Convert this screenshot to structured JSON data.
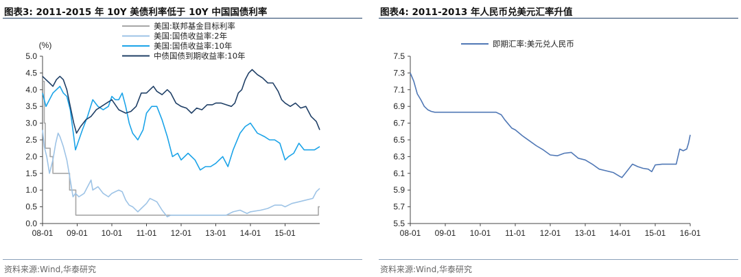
{
  "left": {
    "title": "图表3:  2011-2015 年 10Y 美债利率低于 10Y 中国国债利率",
    "source": "资料来源:Wind,华泰研究"
  },
  "right": {
    "title": "图表4:  2011-2013 年人民币兑美元汇率升值",
    "source": "资料来源:Wind,华泰研究"
  },
  "chart_data": [
    {
      "type": "line",
      "title": "2011-2015 年 10Y 美债利率低于 10Y 中国国债利率",
      "ylabel": "(%)",
      "ylim": [
        0.0,
        5.0
      ],
      "yticks": [
        "5.0",
        "4.5",
        "4.0",
        "3.5",
        "3.0",
        "2.5",
        "2.0",
        "1.5",
        "1.0",
        "0.5",
        "0.0"
      ],
      "xticks": [
        "08-01",
        "09-01",
        "10-01",
        "11-01",
        "12-01",
        "13-01",
        "14-01",
        "15-01"
      ],
      "xlim": [
        2008.0,
        2016.0
      ],
      "legend_position": "top",
      "series": [
        {
          "name": "美国:联邦基金目标利率",
          "color": "#a6a6a6",
          "step": true,
          "x": [
            2008.0,
            2008.05,
            2008.05,
            2008.08,
            2008.08,
            2008.22,
            2008.22,
            2008.3,
            2008.3,
            2008.78,
            2008.78,
            2008.96,
            2008.96,
            2015.96,
            2015.96,
            2016.0
          ],
          "y": [
            4.25,
            4.25,
            3.0,
            3.0,
            2.25,
            2.25,
            2.0,
            2.0,
            1.5,
            1.5,
            1.0,
            1.0,
            0.25,
            0.25,
            0.5,
            0.5
          ]
        },
        {
          "name": "美国:国债收益率:2年",
          "color": "#9dc3e6",
          "x": [
            2008.0,
            2008.05,
            2008.12,
            2008.2,
            2008.3,
            2008.38,
            2008.45,
            2008.5,
            2008.6,
            2008.7,
            2008.8,
            2008.88,
            2008.95,
            2009.05,
            2009.2,
            2009.4,
            2009.45,
            2009.6,
            2009.75,
            2009.9,
            2010.0,
            2010.1,
            2010.2,
            2010.3,
            2010.4,
            2010.5,
            2010.6,
            2010.75,
            2010.85,
            2011.0,
            2011.1,
            2011.2,
            2011.3,
            2011.45,
            2011.6,
            2011.7,
            2011.8,
            2012.0,
            2012.3,
            2012.6,
            2012.8,
            2013.0,
            2013.3,
            2013.5,
            2013.7,
            2013.9,
            2014.0,
            2014.3,
            2014.5,
            2014.7,
            2014.9,
            2015.0,
            2015.2,
            2015.4,
            2015.6,
            2015.8,
            2015.9,
            2016.0
          ],
          "y": [
            2.8,
            2.3,
            2.0,
            1.5,
            1.9,
            2.4,
            2.7,
            2.6,
            2.3,
            1.9,
            1.3,
            0.8,
            0.9,
            0.8,
            0.9,
            1.3,
            1.0,
            1.1,
            0.9,
            0.8,
            0.9,
            0.95,
            1.0,
            0.95,
            0.7,
            0.55,
            0.5,
            0.35,
            0.45,
            0.6,
            0.75,
            0.7,
            0.65,
            0.4,
            0.2,
            0.25,
            0.25,
            0.25,
            0.25,
            0.25,
            0.25,
            0.25,
            0.25,
            0.35,
            0.4,
            0.3,
            0.35,
            0.4,
            0.45,
            0.55,
            0.55,
            0.5,
            0.6,
            0.65,
            0.7,
            0.75,
            0.95,
            1.05
          ]
        },
        {
          "name": "美国:国债收益率:10年",
          "color": "#1aa3e8",
          "x": [
            2008.0,
            2008.1,
            2008.2,
            2008.3,
            2008.4,
            2008.5,
            2008.6,
            2008.7,
            2008.8,
            2008.9,
            2008.95,
            2009.05,
            2009.15,
            2009.3,
            2009.45,
            2009.6,
            2009.75,
            2009.9,
            2010.0,
            2010.1,
            2010.2,
            2010.3,
            2010.4,
            2010.5,
            2010.6,
            2010.75,
            2010.9,
            2011.0,
            2011.15,
            2011.3,
            2011.45,
            2011.6,
            2011.75,
            2011.9,
            2012.0,
            2012.2,
            2012.4,
            2012.55,
            2012.7,
            2012.85,
            2013.0,
            2013.2,
            2013.35,
            2013.5,
            2013.7,
            2013.85,
            2014.0,
            2014.2,
            2014.4,
            2014.55,
            2014.7,
            2014.85,
            2015.0,
            2015.1,
            2015.25,
            2015.4,
            2015.55,
            2015.7,
            2015.85,
            2016.0
          ],
          "y": [
            3.9,
            3.5,
            3.7,
            3.9,
            4.0,
            4.1,
            3.9,
            3.8,
            3.4,
            2.6,
            2.2,
            2.5,
            2.8,
            3.2,
            3.7,
            3.5,
            3.4,
            3.5,
            3.8,
            3.7,
            3.7,
            3.9,
            3.5,
            3.0,
            2.7,
            2.5,
            2.8,
            3.3,
            3.5,
            3.5,
            3.1,
            2.6,
            2.0,
            2.1,
            1.9,
            2.1,
            1.9,
            1.6,
            1.7,
            1.7,
            1.8,
            2.0,
            1.7,
            2.2,
            2.7,
            2.9,
            3.0,
            2.7,
            2.6,
            2.5,
            2.5,
            2.4,
            1.9,
            2.0,
            2.1,
            2.4,
            2.2,
            2.2,
            2.2,
            2.3
          ]
        },
        {
          "name": "中债国债到期收益率:10年",
          "color": "#1f3f66",
          "x": [
            2008.0,
            2008.1,
            2008.2,
            2008.3,
            2008.4,
            2008.5,
            2008.6,
            2008.7,
            2008.8,
            2008.9,
            2008.98,
            2009.1,
            2009.25,
            2009.4,
            2009.55,
            2009.7,
            2009.85,
            2010.0,
            2010.2,
            2010.4,
            2010.55,
            2010.7,
            2010.85,
            2011.0,
            2011.1,
            2011.2,
            2011.3,
            2011.45,
            2011.6,
            2011.7,
            2011.85,
            2012.0,
            2012.15,
            2012.3,
            2012.45,
            2012.6,
            2012.75,
            2012.9,
            2013.0,
            2013.15,
            2013.3,
            2013.45,
            2013.55,
            2013.65,
            2013.75,
            2013.85,
            2013.95,
            2014.05,
            2014.2,
            2014.35,
            2014.5,
            2014.65,
            2014.8,
            2014.9,
            2015.0,
            2015.15,
            2015.3,
            2015.45,
            2015.6,
            2015.75,
            2015.9,
            2016.0
          ],
          "y": [
            4.4,
            4.3,
            4.2,
            4.1,
            4.3,
            4.4,
            4.3,
            4.0,
            3.5,
            3.0,
            2.7,
            2.9,
            3.1,
            3.2,
            3.4,
            3.5,
            3.6,
            3.7,
            3.4,
            3.3,
            3.35,
            3.5,
            3.9,
            3.9,
            4.0,
            4.1,
            3.95,
            3.85,
            4.0,
            3.9,
            3.6,
            3.5,
            3.45,
            3.3,
            3.45,
            3.4,
            3.55,
            3.55,
            3.6,
            3.6,
            3.55,
            3.5,
            3.6,
            3.9,
            4.0,
            4.3,
            4.5,
            4.6,
            4.45,
            4.35,
            4.2,
            4.2,
            3.95,
            3.7,
            3.6,
            3.5,
            3.6,
            3.45,
            3.5,
            3.2,
            3.05,
            2.8
          ]
        }
      ]
    },
    {
      "type": "line",
      "title": "2011-2013 年人民币兑美元汇率升值",
      "ylabel": "",
      "ylim": [
        5.5,
        7.5
      ],
      "yticks": [
        "7.5",
        "7.3",
        "7.1",
        "6.9",
        "6.7",
        "6.5",
        "6.3",
        "6.1",
        "5.9",
        "5.7",
        "5.5"
      ],
      "xticks": [
        "08-01",
        "09-01",
        "10-01",
        "11-01",
        "12-01",
        "13-01",
        "14-01",
        "15-01",
        "16-01"
      ],
      "xlim": [
        2008.0,
        2016.0
      ],
      "legend_position": "top",
      "series": [
        {
          "name": "即期汇率:美元兑人民币",
          "color": "#4f77b5",
          "x": [
            2008.0,
            2008.1,
            2008.2,
            2008.3,
            2008.4,
            2008.5,
            2008.6,
            2008.7,
            2008.8,
            2009.0,
            2009.3,
            2009.6,
            2010.0,
            2010.3,
            2010.45,
            2010.6,
            2010.7,
            2010.8,
            2010.9,
            2011.0,
            2011.2,
            2011.4,
            2011.6,
            2011.8,
            2012.0,
            2012.2,
            2012.4,
            2012.6,
            2012.8,
            2013.0,
            2013.2,
            2013.4,
            2013.6,
            2013.8,
            2014.0,
            2014.05,
            2014.2,
            2014.35,
            2014.5,
            2014.65,
            2014.8,
            2014.9,
            2015.0,
            2015.2,
            2015.4,
            2015.55,
            2015.6,
            2015.7,
            2015.8,
            2015.9,
            2015.95,
            2016.0
          ],
          "y": [
            7.3,
            7.2,
            7.05,
            6.98,
            6.9,
            6.86,
            6.84,
            6.83,
            6.83,
            6.83,
            6.83,
            6.83,
            6.83,
            6.83,
            6.83,
            6.8,
            6.74,
            6.69,
            6.64,
            6.62,
            6.55,
            6.49,
            6.43,
            6.38,
            6.32,
            6.31,
            6.34,
            6.35,
            6.28,
            6.26,
            6.21,
            6.15,
            6.13,
            6.11,
            6.06,
            6.05,
            6.13,
            6.21,
            6.18,
            6.16,
            6.15,
            6.12,
            6.2,
            6.21,
            6.21,
            6.21,
            6.21,
            6.39,
            6.37,
            6.39,
            6.46,
            6.56
          ]
        }
      ]
    }
  ]
}
